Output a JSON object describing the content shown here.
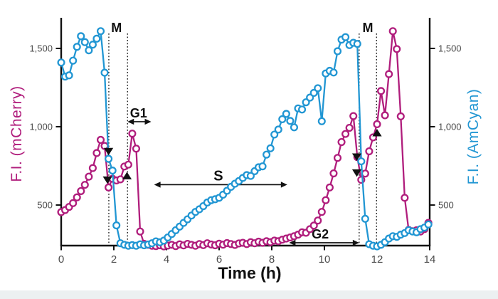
{
  "figure": {
    "background": "#ffffff",
    "footer_strip_color": "#ecf0f1",
    "axis_color": "#111111",
    "tick_label_color": "#4a4a4a",
    "annotation_color": "#111111"
  },
  "chart_data": {
    "type": "line",
    "title": "",
    "xlabel": "Time (h)",
    "x_range": [
      0,
      14
    ],
    "x_ticks": [
      0,
      2,
      4,
      6,
      8,
      10,
      12,
      14
    ],
    "x_tick_labels": [
      "0",
      "2",
      "4",
      "6",
      "8",
      "10",
      "12",
      "14"
    ],
    "ylim": [
      240,
      1675
    ],
    "grid": false,
    "legend": "none",
    "left_axis": {
      "label": "F.I. (mCherry)",
      "color": "#b01d7c",
      "tick_values": [
        500,
        1000,
        1500
      ],
      "tick_labels": [
        "500",
        "1,000",
        "1,500"
      ]
    },
    "right_axis": {
      "label": "F.I. (AmCyan)",
      "color": "#2196d3",
      "tick_values": [
        500,
        1000,
        1500
      ],
      "tick_labels": [
        "500",
        "1,000",
        "1,500"
      ]
    },
    "series": [
      {
        "name": "mCherry",
        "color": "#b01d7c",
        "marker": "open-circle",
        "t_start": 0,
        "t_step": 0.15,
        "values": [
          455,
          468,
          488,
          512,
          549,
          589,
          629,
          681,
          736,
          832,
          916,
          877,
          612,
          668,
          657,
          664,
          746,
          758,
          956,
          860,
          331,
          252,
          246,
          240,
          238,
          243,
          236,
          241,
          246,
          238,
          249,
          242,
          252,
          246,
          240,
          251,
          244,
          256,
          248,
          243,
          253,
          247,
          257,
          251,
          245,
          255,
          259,
          251,
          263,
          256,
          266,
          259,
          269,
          263,
          273,
          269,
          279,
          286,
          293,
          301,
          311,
          326,
          323,
          346,
          369,
          401,
          456,
          531,
          612,
          702,
          801,
          902,
          954,
          993,
          1068,
          806,
          661,
          701,
          843,
          932,
          1016,
          1228,
          1073,
          1336,
          1610,
          1496,
          1066,
          546,
          341,
          333,
          339,
          331,
          346,
          386
        ]
      },
      {
        "name": "AmCyan",
        "color": "#2196d3",
        "marker": "open-circle",
        "t_start": 0,
        "t_step": 0.15,
        "values": [
          1410,
          1320,
          1328,
          1422,
          1510,
          1578,
          1540,
          1488,
          1524,
          1562,
          1610,
          1345,
          795,
          720,
          370,
          256,
          246,
          240,
          244,
          240,
          249,
          243,
          248,
          256,
          268,
          262,
          273,
          293,
          315,
          339,
          362,
          386,
          409,
          433,
          456,
          473,
          493,
          516,
          531,
          537,
          546,
          566,
          591,
          616,
          636,
          653,
          673,
          691,
          686,
          716,
          741,
          747,
          822,
          862,
          950,
          982,
          1048,
          1082,
          1037,
          996,
          1117,
          1110,
          1156,
          1186,
          1216,
          1246,
          1035,
          1340,
          1357,
          1346,
          1482,
          1556,
          1572,
          1521,
          1536,
          1529,
          779,
          412,
          250,
          240,
          236,
          246,
          263,
          286,
          301,
          297,
          311,
          321,
          339,
          331,
          326,
          346,
          356,
          376
        ]
      }
    ],
    "annotations": {
      "phase_boundary_lines_t": [
        1.81,
        2.52,
        11.32,
        11.98
      ],
      "phase_labels": [
        {
          "text": "M",
          "t": 2.1
        },
        {
          "text": "M",
          "t": 11.65
        }
      ],
      "span_arrows": [
        {
          "label": "G1",
          "t_start": 2.52,
          "t_end": 3.42,
          "value": 1032,
          "label_t": 2.94
        },
        {
          "label": "S",
          "t_start": 3.53,
          "t_end": 8.59,
          "value": 630,
          "label_t": 5.97
        },
        {
          "label": "G2",
          "t_start": 8.66,
          "t_end": 11.32,
          "value": 259,
          "label_t": 9.84
        }
      ],
      "event_markers": [
        {
          "shape": "triangle-down",
          "t": 1.8,
          "value": 841
        },
        {
          "shape": "triangle-down",
          "t": 1.76,
          "value": 659
        },
        {
          "shape": "triangle-up",
          "t": 2.5,
          "value": 688
        },
        {
          "shape": "triangle-down",
          "t": 11.23,
          "value": 806
        },
        {
          "shape": "triangle-down",
          "t": 11.23,
          "value": 704
        },
        {
          "shape": "triangle-up",
          "t": 12.0,
          "value": 962
        }
      ]
    }
  }
}
